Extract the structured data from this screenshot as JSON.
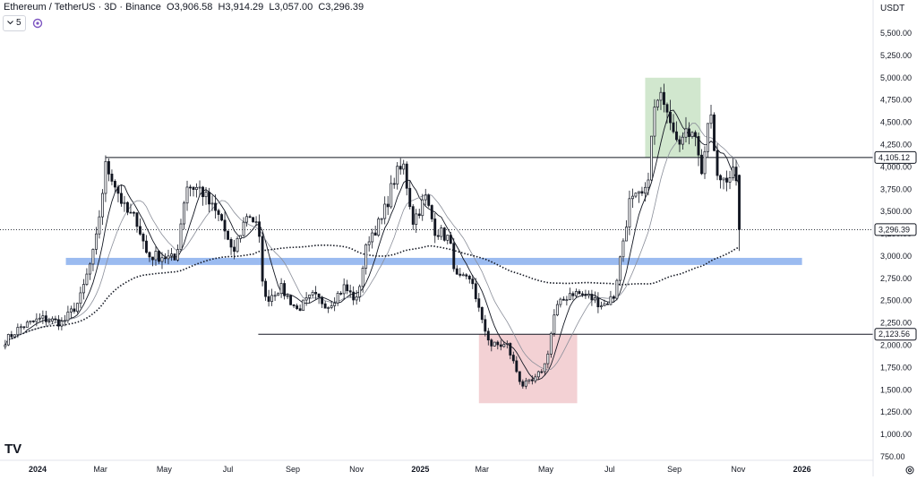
{
  "header": {
    "symbol": "Ethereum / TetherUS · 3D · Binance",
    "open_label": "O",
    "open": "3,906.58",
    "high_label": "H",
    "high": "3,914.29",
    "low_label": "L",
    "low": "3,057.00",
    "close_label": "C",
    "close": "3,296.39",
    "interval_count": "5"
  },
  "currency": "USDT",
  "logo_text": "TV",
  "colors": {
    "up": "#131722",
    "down": "#131722",
    "resistance_zone": "#c9e3c6",
    "support_zone": "#f1c9cc",
    "blue_band": "#90b4ee",
    "ma_fast": "#131722",
    "ma_slow": "#8a8e99",
    "ma_long": "#131722"
  },
  "chart_data": {
    "type": "candlestick",
    "title": "",
    "xlabel": "",
    "ylabel": "",
    "ylim": [
      750,
      5750
    ],
    "y_ticks": [
      "5,500.00",
      "5,250.00",
      "5,000.00",
      "4,750.00",
      "4,500.00",
      "4,250.00",
      "4,000.00",
      "3,750.00",
      "3,500.00",
      "3,250.00",
      "3,000.00",
      "2,750.00",
      "2,500.00",
      "2,250.00",
      "2,000.00",
      "1,750.00",
      "1,500.00",
      "1,250.00",
      "1,000.00",
      "750.00"
    ],
    "y_tick_values": [
      5500,
      5250,
      5000,
      4750,
      4500,
      4250,
      4000,
      3750,
      3500,
      3250,
      3000,
      2750,
      2500,
      2250,
      2000,
      1750,
      1500,
      1250,
      1000,
      750
    ],
    "x_ticks": [
      {
        "label": "2024",
        "date": "2024-01-01",
        "bold": true
      },
      {
        "label": "Mar",
        "date": "2024-03-01"
      },
      {
        "label": "May",
        "date": "2024-05-01"
      },
      {
        "label": "Jul",
        "date": "2024-07-01"
      },
      {
        "label": "Sep",
        "date": "2024-09-01"
      },
      {
        "label": "Nov",
        "date": "2024-11-01"
      },
      {
        "label": "2025",
        "date": "2025-01-01",
        "bold": true
      },
      {
        "label": "Mar",
        "date": "2025-03-01"
      },
      {
        "label": "May",
        "date": "2025-05-01"
      },
      {
        "label": "Jul",
        "date": "2025-07-01"
      },
      {
        "label": "Sep",
        "date": "2025-09-01"
      },
      {
        "label": "Nov",
        "date": "2025-11-01"
      },
      {
        "label": "2026",
        "date": "2026-01-01",
        "bold": true
      }
    ],
    "x_range": [
      "2023-11-26",
      "2026-03-10"
    ],
    "last_price": {
      "value": 3296.39,
      "label": "3,296.39"
    },
    "horizontal_levels": [
      {
        "value": 4105.12,
        "label": "4,105.12",
        "from": "2024-03-06"
      },
      {
        "value": 2123.56,
        "label": "2,123.56",
        "from": "2024-07-30"
      }
    ],
    "zones": [
      {
        "name": "resistance",
        "from": "2025-08-04",
        "to": "2025-09-26",
        "low": 4105,
        "high": 5000
      },
      {
        "name": "support",
        "from": "2025-02-26",
        "to": "2025-05-31",
        "low": 1350,
        "high": 2123
      },
      {
        "name": "band",
        "from": "2024-01-28",
        "to": "2026-01-01",
        "low": 2900,
        "high": 2980
      }
    ],
    "waypoints": [
      [
        "2023-12-01",
        2050
      ],
      [
        "2023-12-15",
        2200
      ],
      [
        "2024-01-05",
        2300
      ],
      [
        "2024-01-25",
        2250
      ],
      [
        "2024-02-10",
        2500
      ],
      [
        "2024-02-25",
        3100
      ],
      [
        "2024-03-06",
        4000
      ],
      [
        "2024-03-12",
        3900
      ],
      [
        "2024-03-25",
        3500
      ],
      [
        "2024-04-05",
        3400
      ],
      [
        "2024-04-15",
        3000
      ],
      [
        "2024-04-30",
        3000
      ],
      [
        "2024-05-12",
        2950
      ],
      [
        "2024-05-22",
        3800
      ],
      [
        "2024-06-05",
        3750
      ],
      [
        "2024-06-15",
        3550
      ],
      [
        "2024-06-25",
        3400
      ],
      [
        "2024-07-05",
        3000
      ],
      [
        "2024-07-20",
        3500
      ],
      [
        "2024-07-30",
        3300
      ],
      [
        "2024-08-05",
        2500
      ],
      [
        "2024-08-20",
        2650
      ],
      [
        "2024-09-05",
        2400
      ],
      [
        "2024-09-20",
        2550
      ],
      [
        "2024-10-05",
        2450
      ],
      [
        "2024-10-20",
        2650
      ],
      [
        "2024-11-01",
        2500
      ],
      [
        "2024-11-12",
        3200
      ],
      [
        "2024-11-25",
        3400
      ],
      [
        "2024-12-08",
        3900
      ],
      [
        "2024-12-16",
        4000
      ],
      [
        "2024-12-25",
        3400
      ],
      [
        "2025-01-06",
        3650
      ],
      [
        "2025-01-15",
        3300
      ],
      [
        "2025-01-28",
        3200
      ],
      [
        "2025-02-05",
        2750
      ],
      [
        "2025-02-20",
        2700
      ],
      [
        "2025-03-01",
        2250
      ],
      [
        "2025-03-10",
        2000
      ],
      [
        "2025-03-25",
        2000
      ],
      [
        "2025-04-08",
        1550
      ],
      [
        "2025-04-20",
        1600
      ],
      [
        "2025-05-01",
        1800
      ],
      [
        "2025-05-10",
        2400
      ],
      [
        "2025-05-25",
        2600
      ],
      [
        "2025-06-10",
        2550
      ],
      [
        "2025-06-25",
        2450
      ],
      [
        "2025-07-05",
        2550
      ],
      [
        "2025-07-20",
        3600
      ],
      [
        "2025-08-05",
        3700
      ],
      [
        "2025-08-13",
        4650
      ],
      [
        "2025-08-22",
        4800
      ],
      [
        "2025-09-02",
        4400
      ],
      [
        "2025-09-10",
        4300
      ],
      [
        "2025-09-20",
        4500
      ],
      [
        "2025-09-26",
        3900
      ],
      [
        "2025-10-06",
        4600
      ],
      [
        "2025-10-11",
        3850
      ],
      [
        "2025-10-20",
        3900
      ],
      [
        "2025-10-28",
        3950
      ],
      [
        "2025-11-04",
        3300
      ]
    ]
  }
}
